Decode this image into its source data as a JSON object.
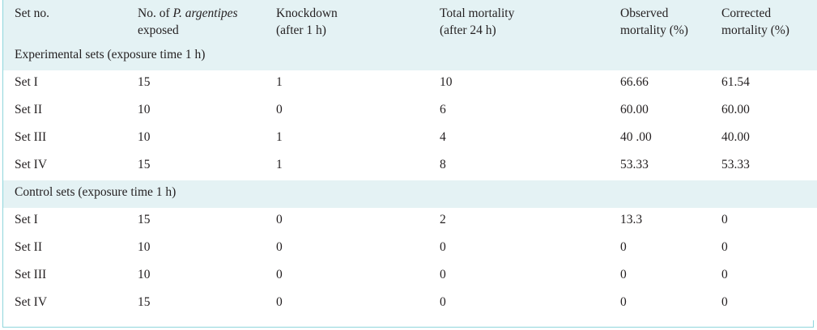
{
  "header": {
    "col1": "Set no.",
    "col2_prefix": "No. of",
    "col2_species": "P. argentipes",
    "col2_suffix": "exposed",
    "col3_line1": "Knockdown",
    "col3_line2": "(after 1 h)",
    "col4_line1": "Total mortality",
    "col4_line2": "(after 24 h)",
    "col5_line1": "Observed",
    "col5_line2": "mortality (%)",
    "col6_line1": "Corrected",
    "col6_line2": "mortality (%)"
  },
  "experimental": {
    "title": "Experimental sets (exposure time 1 h)",
    "rows": [
      {
        "set": "Set I",
        "exposed": "15",
        "knockdown": "1",
        "total": "10",
        "observed": "66.66",
        "corrected": "61.54"
      },
      {
        "set": "Set II",
        "exposed": "10",
        "knockdown": "0",
        "total": "6",
        "observed": "60.00",
        "corrected": "60.00"
      },
      {
        "set": "Set III",
        "exposed": "10",
        "knockdown": "1",
        "total": "4",
        "observed": "40 .00",
        "corrected": "40.00"
      },
      {
        "set": "Set IV",
        "exposed": "15",
        "knockdown": "1",
        "total": "8",
        "observed": "53.33",
        "corrected": "53.33"
      }
    ]
  },
  "control": {
    "title": "Control sets (exposure time 1 h)",
    "rows": [
      {
        "set": "Set I",
        "exposed": "15",
        "knockdown": "0",
        "total": "2",
        "observed": "13.3",
        "corrected": "0"
      },
      {
        "set": "Set II",
        "exposed": "10",
        "knockdown": "0",
        "total": "0",
        "observed": "0",
        "corrected": "0"
      },
      {
        "set": "Set III",
        "exposed": "10",
        "knockdown": "0",
        "total": "0",
        "observed": "0",
        "corrected": "0"
      },
      {
        "set": "Set IV",
        "exposed": "15",
        "knockdown": "0",
        "total": "0",
        "observed": "0",
        "corrected": "0"
      }
    ]
  },
  "colors": {
    "header_bg": "#e4f2f4",
    "border": "#8fd6dc",
    "text": "#231f20"
  }
}
